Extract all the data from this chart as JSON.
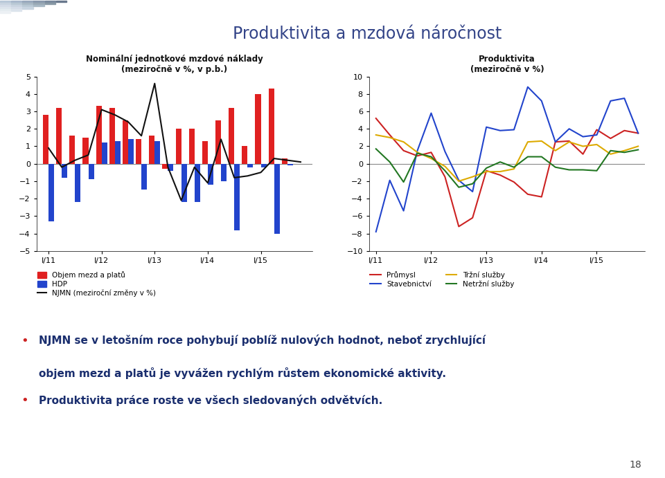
{
  "title_main": "Produktivita a mzdová náročnost",
  "left_chart_title": "Nominální jednotkové mzdové náklady",
  "left_chart_subtitle": "(meziročně v %, v p.b.)",
  "right_chart_title": "Produktivita",
  "right_chart_subtitle": "(meziročně v %)",
  "x_labels": [
    "I/11",
    "I/12",
    "I/13",
    "I/14",
    "I/15"
  ],
  "bar_x": [
    0,
    1,
    2,
    3,
    4,
    5,
    6,
    7,
    8,
    9,
    10,
    11,
    12,
    13,
    14,
    15,
    16,
    17,
    18,
    19
  ],
  "objem_mezd": [
    2.8,
    3.2,
    1.6,
    1.5,
    3.3,
    3.2,
    2.5,
    1.4,
    1.6,
    -0.3,
    2.0,
    2.0,
    1.3,
    2.5,
    3.2,
    1.0,
    4.0,
    4.3,
    0.3,
    0.0
  ],
  "hdp": [
    -3.3,
    -0.8,
    -2.2,
    -0.9,
    1.2,
    1.3,
    1.4,
    -1.5,
    1.3,
    -0.4,
    -2.2,
    -2.2,
    -1.2,
    -1.0,
    -3.8,
    -0.2,
    -0.2,
    -4.0,
    -0.1,
    0.0
  ],
  "njmn": [
    0.9,
    -0.2,
    0.2,
    0.5,
    3.1,
    2.8,
    2.4,
    1.6,
    4.6,
    -0.2,
    -2.1,
    -0.2,
    -1.1,
    1.4,
    -0.8,
    -0.7,
    -0.5,
    0.3,
    0.2,
    0.1
  ],
  "right_x": [
    0,
    1,
    2,
    3,
    4,
    5,
    6,
    7,
    8,
    9,
    10,
    11,
    12,
    13,
    14,
    15,
    16,
    17,
    18,
    19
  ],
  "prumysl": [
    5.2,
    3.3,
    1.5,
    0.9,
    1.3,
    -1.5,
    -7.2,
    -6.2,
    -0.8,
    -1.3,
    -2.1,
    -3.5,
    -3.8,
    2.5,
    2.6,
    1.1,
    3.9,
    2.9,
    3.8,
    3.5
  ],
  "stavebnictvi": [
    -7.8,
    -1.9,
    -5.4,
    1.5,
    5.8,
    1.4,
    -1.9,
    -3.2,
    4.2,
    3.8,
    3.9,
    8.8,
    7.2,
    2.5,
    4.0,
    3.1,
    3.3,
    7.2,
    7.5,
    3.5
  ],
  "trzni_sluzby": [
    3.3,
    3.0,
    2.5,
    1.3,
    0.6,
    -0.3,
    -2.0,
    -1.5,
    -0.9,
    -0.9,
    -0.6,
    2.5,
    2.6,
    1.5,
    2.5,
    2.0,
    2.2,
    1.1,
    1.5,
    2.0
  ],
  "netrzni_sluzby": [
    1.7,
    0.2,
    -2.1,
    1.2,
    0.8,
    -0.8,
    -2.7,
    -2.3,
    -0.5,
    0.2,
    -0.4,
    0.8,
    0.8,
    -0.4,
    -0.7,
    -0.7,
    -0.8,
    1.5,
    1.3,
    1.6
  ],
  "color_objem": "#e02020",
  "color_hdp": "#2244cc",
  "color_njmn": "#111111",
  "color_prumysl": "#cc2222",
  "color_stavebnictvi": "#2244cc",
  "color_trzni": "#ddaa00",
  "color_netrzni": "#227722",
  "background_color": "#ffffff",
  "header_bg": "#dde4ed",
  "bullet1": "NJMN se v letošním roce pohybují poblíž nulových hodnot, neboť zrychlující",
  "bullet1b": "objem mezd a platů je vyvážen rychlým růstem ekonomické aktivity.",
  "bullet2": "Produktivita práce roste ve všech sledovaných odvětvích.",
  "legend_left": [
    "Objem mezd a platů",
    "HDP",
    "NJMN (meziroční změny v %)"
  ],
  "legend_right": [
    "Průmysl",
    "Stavebnictví",
    "Tržní služby",
    "Netržní služby"
  ],
  "page_num": "18"
}
